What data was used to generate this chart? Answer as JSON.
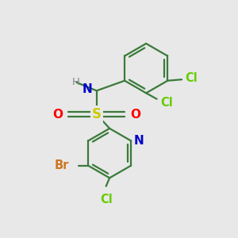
{
  "background_color": "#e8e8e8",
  "bond_color": "#3a7a3a",
  "atom_colors": {
    "N_amine": "#0000cc",
    "H": "#888888",
    "S": "#cccc00",
    "O": "#ff0000",
    "Cl": "#66cc00",
    "Br": "#cc7722",
    "N_pyridine": "#0000cc"
  },
  "figsize": [
    3.0,
    3.0
  ],
  "dpi": 100
}
